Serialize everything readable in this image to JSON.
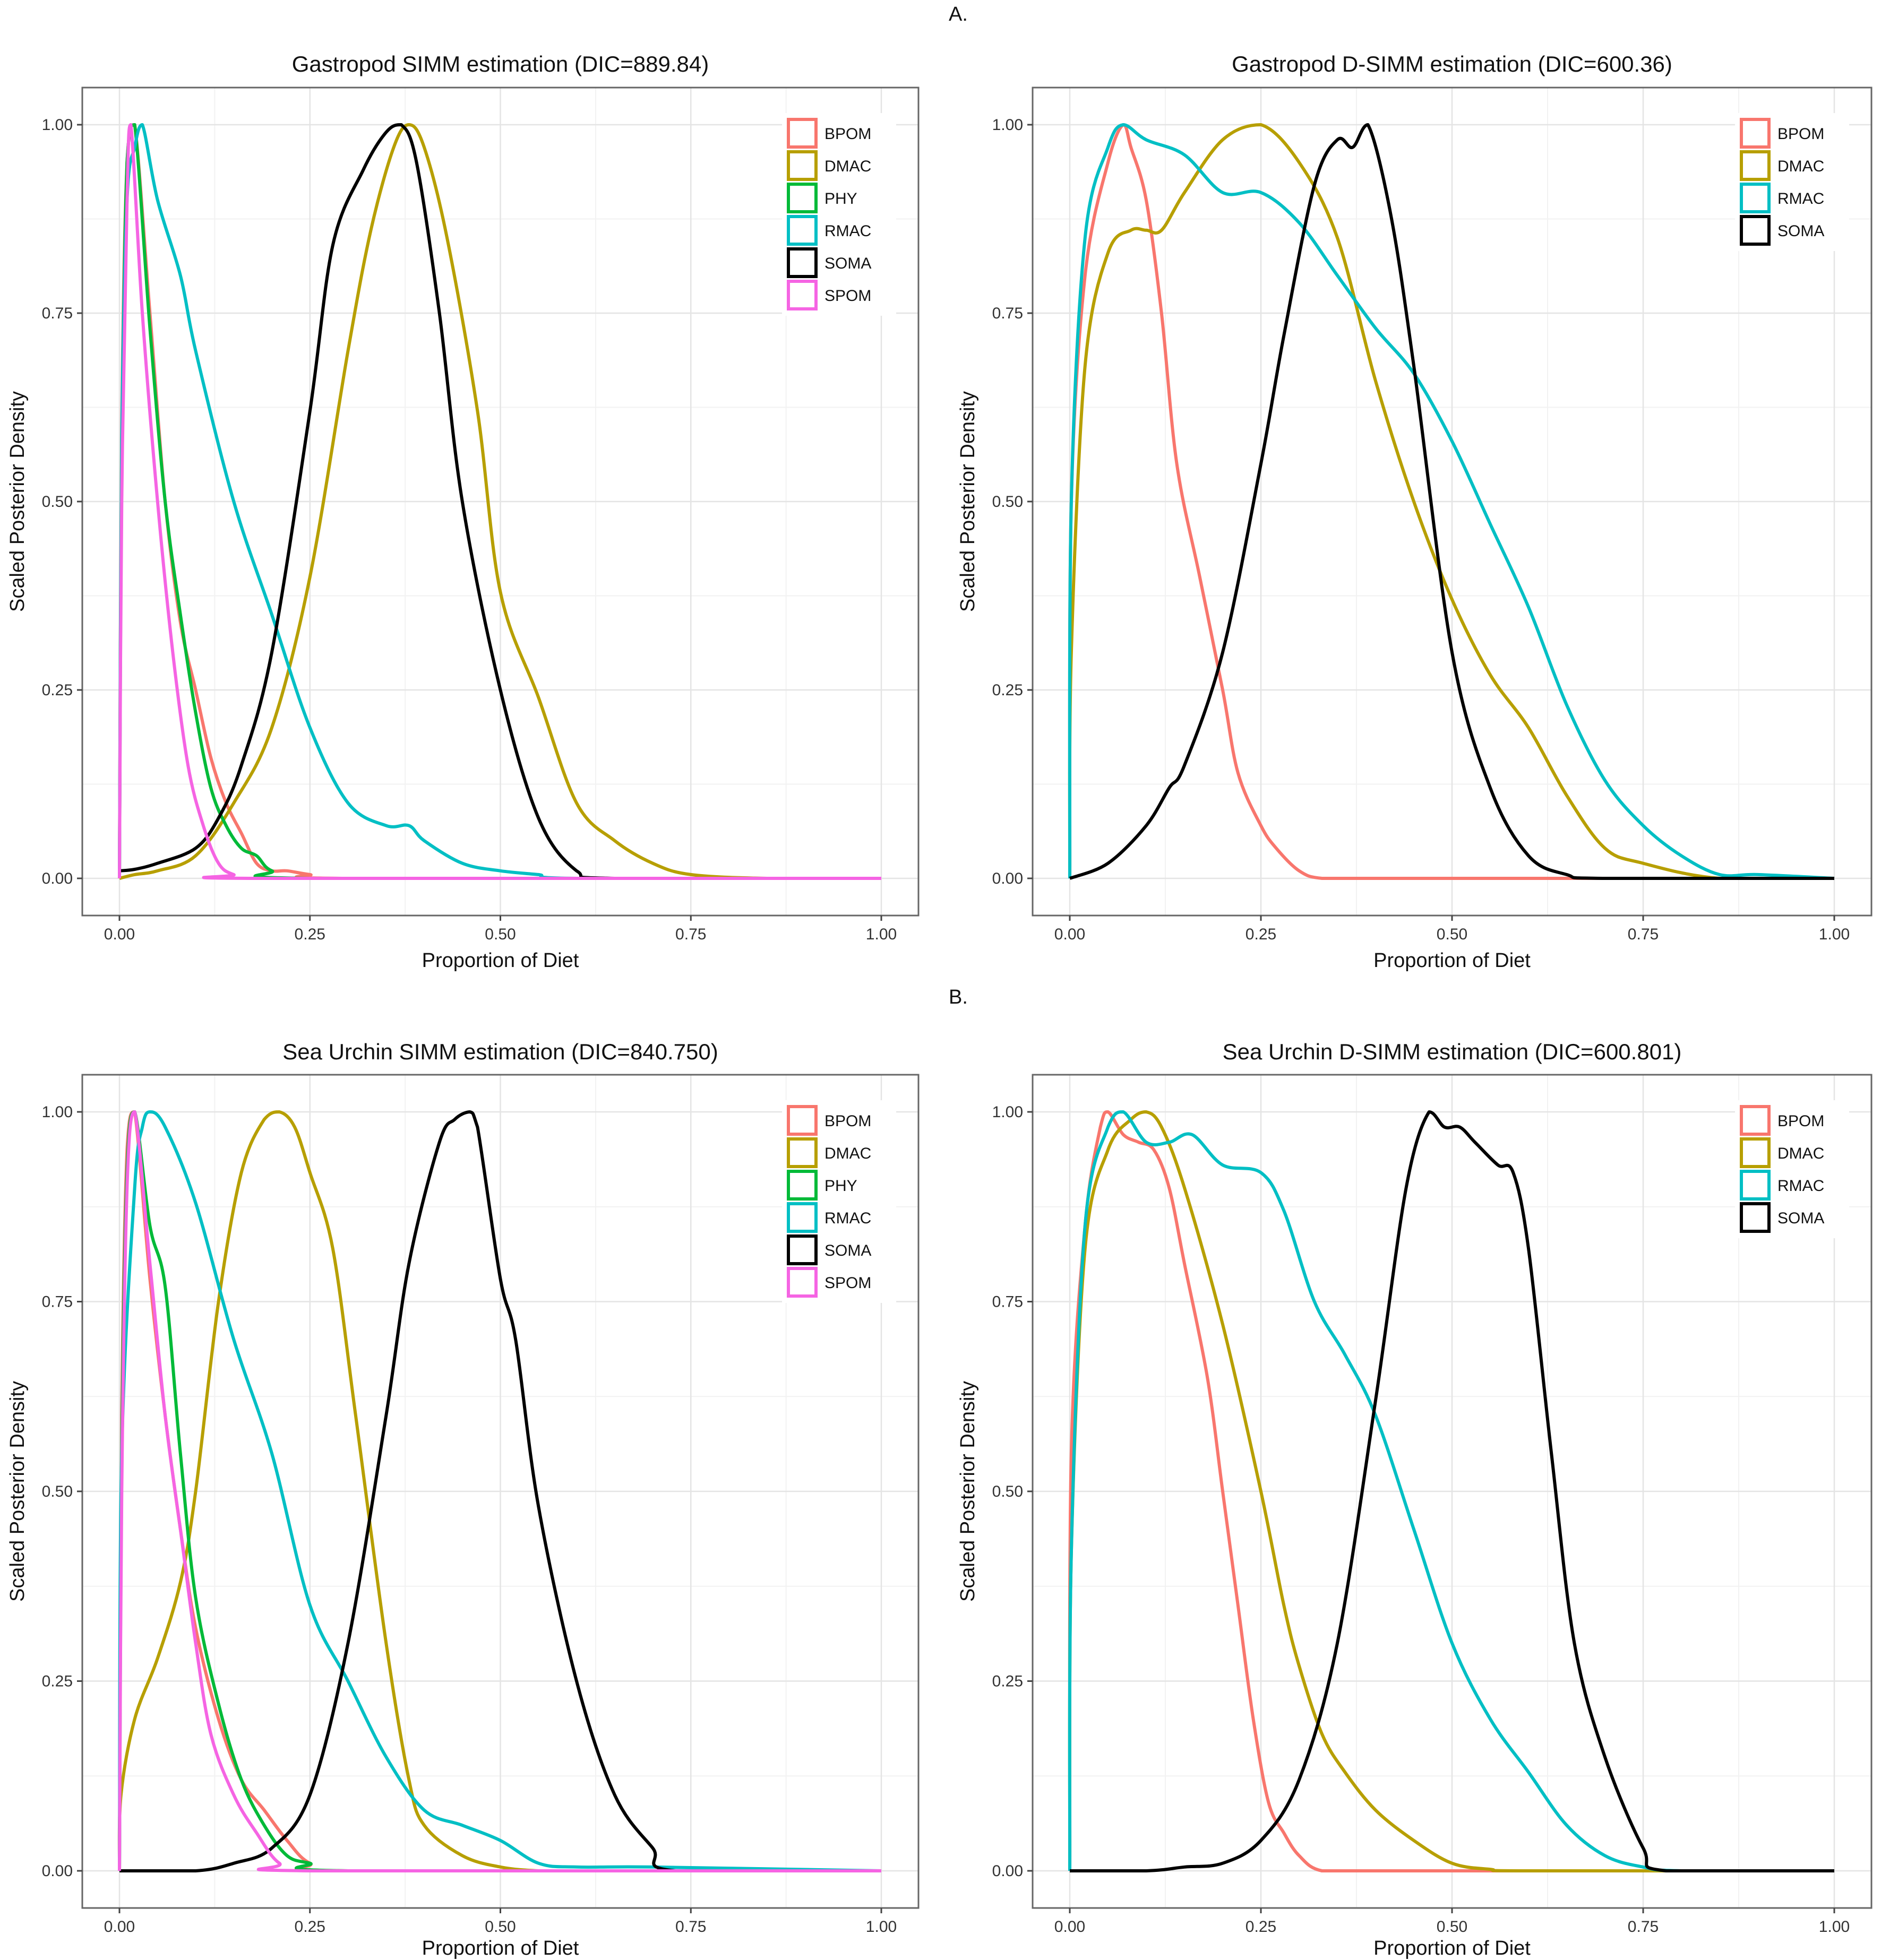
{
  "figure": {
    "section_labels": [
      "A.",
      "B."
    ],
    "colors": {
      "BPOM": "#F8766D",
      "DMAC": "#B79F00",
      "PHY": "#00BA38",
      "RMAC": "#00BFC4",
      "SOMA": "#000000",
      "SPOM": "#F564E3"
    }
  },
  "chart_data": [
    {
      "type": "line",
      "title": "Gastropod SIMM estimation (DIC=889.84)",
      "xlabel": "Proportion of Diet",
      "ylabel": "Scaled Posterior Density",
      "xlim": [
        0,
        1
      ],
      "ylim": [
        0,
        1
      ],
      "xticks": [
        "0.00",
        "0.25",
        "0.50",
        "0.75",
        "1.00"
      ],
      "yticks": [
        "0.00",
        "0.25",
        "0.50",
        "0.75",
        "1.00"
      ],
      "legend": "top-right",
      "series": [
        {
          "name": "BPOM",
          "x": [
            0,
            0.003,
            0.01,
            0.02,
            0.04,
            0.06,
            0.08,
            0.1,
            0.12,
            0.14,
            0.16,
            0.18,
            0.2,
            0.22,
            0.25,
            0.3,
            1.0
          ],
          "values": [
            0,
            0.6,
            0.95,
            1.0,
            0.75,
            0.5,
            0.34,
            0.25,
            0.16,
            0.1,
            0.06,
            0.02,
            0.01,
            0.01,
            0.005,
            0,
            0
          ]
        },
        {
          "name": "DMAC",
          "x": [
            0,
            0.02,
            0.05,
            0.1,
            0.15,
            0.2,
            0.25,
            0.3,
            0.33,
            0.36,
            0.38,
            0.4,
            0.43,
            0.47,
            0.5,
            0.55,
            0.6,
            0.65,
            0.7,
            0.75,
            0.85,
            1.0
          ],
          "values": [
            0,
            0.005,
            0.01,
            0.03,
            0.1,
            0.2,
            0.4,
            0.7,
            0.86,
            0.97,
            1.0,
            0.97,
            0.85,
            0.62,
            0.38,
            0.24,
            0.1,
            0.05,
            0.02,
            0.005,
            0,
            0
          ]
        },
        {
          "name": "PHY",
          "x": [
            0,
            0.003,
            0.01,
            0.02,
            0.04,
            0.06,
            0.08,
            0.1,
            0.12,
            0.14,
            0.16,
            0.18,
            0.2,
            0.25,
            1.0
          ],
          "values": [
            0,
            0.55,
            0.95,
            1.0,
            0.73,
            0.5,
            0.35,
            0.22,
            0.12,
            0.07,
            0.04,
            0.03,
            0.01,
            0,
            0
          ]
        },
        {
          "name": "RMAC",
          "x": [
            0,
            0.003,
            0.01,
            0.02,
            0.03,
            0.05,
            0.08,
            0.1,
            0.15,
            0.2,
            0.25,
            0.3,
            0.35,
            0.38,
            0.4,
            0.45,
            0.5,
            0.55,
            0.6,
            1.0
          ],
          "values": [
            0,
            0.58,
            0.9,
            0.97,
            1.0,
            0.9,
            0.8,
            0.7,
            0.5,
            0.35,
            0.2,
            0.1,
            0.07,
            0.07,
            0.05,
            0.02,
            0.01,
            0.005,
            0,
            0
          ]
        },
        {
          "name": "SOMA",
          "x": [
            0,
            0.02,
            0.05,
            0.1,
            0.13,
            0.16,
            0.2,
            0.25,
            0.28,
            0.32,
            0.35,
            0.37,
            0.39,
            0.42,
            0.45,
            0.5,
            0.55,
            0.6,
            0.65,
            1.0
          ],
          "values": [
            0.01,
            0.012,
            0.02,
            0.04,
            0.08,
            0.15,
            0.3,
            0.62,
            0.84,
            0.94,
            0.99,
            1.0,
            0.95,
            0.75,
            0.5,
            0.25,
            0.08,
            0.01,
            0,
            0
          ]
        },
        {
          "name": "SPOM",
          "x": [
            0,
            0.003,
            0.01,
            0.015,
            0.03,
            0.05,
            0.07,
            0.09,
            0.11,
            0.13,
            0.15,
            0.18,
            1.0
          ],
          "values": [
            0,
            0.5,
            0.9,
            1.0,
            0.75,
            0.5,
            0.3,
            0.15,
            0.07,
            0.02,
            0.005,
            0,
            0
          ]
        }
      ]
    },
    {
      "type": "line",
      "title": "Gastropod  D-SIMM estimation (DIC=600.36)",
      "xlabel": "Proportion of Diet",
      "ylabel": "Scaled Posterior Density",
      "xlim": [
        0,
        1
      ],
      "ylim": [
        0,
        1
      ],
      "xticks": [
        "0.00",
        "0.25",
        "0.50",
        "0.75",
        "1.00"
      ],
      "yticks": [
        "0.00",
        "0.25",
        "0.50",
        "0.75",
        "1.00"
      ],
      "legend": "top-right",
      "series": [
        {
          "name": "BPOM",
          "x": [
            0,
            0.002,
            0.02,
            0.05,
            0.07,
            0.08,
            0.1,
            0.12,
            0.14,
            0.17,
            0.2,
            0.22,
            0.25,
            0.27,
            0.3,
            0.33,
            0.4,
            1.0
          ],
          "values": [
            0,
            0.5,
            0.8,
            0.95,
            1.0,
            0.97,
            0.9,
            0.75,
            0.55,
            0.4,
            0.25,
            0.14,
            0.07,
            0.04,
            0.01,
            0,
            0,
            0
          ]
        },
        {
          "name": "DMAC",
          "x": [
            0,
            0.002,
            0.02,
            0.05,
            0.08,
            0.1,
            0.12,
            0.15,
            0.2,
            0.25,
            0.3,
            0.35,
            0.4,
            0.45,
            0.5,
            0.55,
            0.6,
            0.65,
            0.7,
            0.75,
            0.85,
            1.0
          ],
          "values": [
            0,
            0.3,
            0.68,
            0.83,
            0.86,
            0.86,
            0.86,
            0.91,
            0.98,
            1.0,
            0.95,
            0.85,
            0.66,
            0.5,
            0.37,
            0.27,
            0.2,
            0.11,
            0.04,
            0.02,
            0,
            0
          ]
        },
        {
          "name": "RMAC",
          "x": [
            0,
            0.002,
            0.02,
            0.05,
            0.07,
            0.1,
            0.15,
            0.2,
            0.25,
            0.3,
            0.35,
            0.4,
            0.45,
            0.5,
            0.55,
            0.6,
            0.65,
            0.7,
            0.75,
            0.8,
            0.85,
            0.9,
            1.0
          ],
          "values": [
            0,
            0.5,
            0.85,
            0.97,
            1.0,
            0.98,
            0.96,
            0.91,
            0.91,
            0.87,
            0.8,
            0.73,
            0.67,
            0.58,
            0.47,
            0.36,
            0.23,
            0.13,
            0.07,
            0.03,
            0.005,
            0.005,
            0
          ]
        },
        {
          "name": "SOMA",
          "x": [
            0,
            0.05,
            0.1,
            0.13,
            0.15,
            0.2,
            0.25,
            0.28,
            0.32,
            0.35,
            0.37,
            0.39,
            0.42,
            0.45,
            0.5,
            0.55,
            0.6,
            0.65,
            0.7,
            1.0
          ],
          "values": [
            0,
            0.02,
            0.07,
            0.12,
            0.15,
            0.3,
            0.55,
            0.72,
            0.92,
            0.98,
            0.97,
            1.0,
            0.88,
            0.68,
            0.3,
            0.12,
            0.03,
            0.005,
            0,
            0
          ]
        }
      ]
    },
    {
      "type": "line",
      "title": "Sea Urchin SIMM estimation (DIC=840.750)",
      "xlabel": "Proportion of Diet",
      "ylabel": "Scaled Posterior Density",
      "xlim": [
        0,
        1
      ],
      "ylim": [
        0,
        1
      ],
      "xticks": [
        "0.00",
        "0.25",
        "0.50",
        "0.75",
        "1.00"
      ],
      "yticks": [
        "0.00",
        "0.25",
        "0.50",
        "0.75",
        "1.00"
      ],
      "legend": "top-right",
      "series": [
        {
          "name": "BPOM",
          "x": [
            0,
            0.003,
            0.01,
            0.02,
            0.04,
            0.06,
            0.08,
            0.1,
            0.13,
            0.16,
            0.19,
            0.22,
            0.25,
            0.3,
            1.0
          ],
          "values": [
            0,
            0.6,
            0.95,
            1.0,
            0.78,
            0.6,
            0.45,
            0.32,
            0.2,
            0.12,
            0.08,
            0.04,
            0.01,
            0,
            0
          ]
        },
        {
          "name": "DMAC",
          "x": [
            0,
            0.002,
            0.02,
            0.05,
            0.08,
            0.1,
            0.13,
            0.16,
            0.19,
            0.21,
            0.23,
            0.25,
            0.28,
            0.31,
            0.35,
            0.38,
            0.4,
            0.45,
            0.5,
            0.55,
            0.6,
            1.0
          ],
          "values": [
            0,
            0.1,
            0.2,
            0.28,
            0.38,
            0.5,
            0.75,
            0.92,
            0.99,
            1.0,
            0.98,
            0.92,
            0.82,
            0.6,
            0.3,
            0.12,
            0.06,
            0.02,
            0.005,
            0,
            0,
            0
          ]
        },
        {
          "name": "PHY",
          "x": [
            0,
            0.003,
            0.01,
            0.02,
            0.04,
            0.06,
            0.08,
            0.1,
            0.13,
            0.16,
            0.19,
            0.22,
            0.25,
            0.3,
            1.0
          ],
          "values": [
            0,
            0.55,
            0.92,
            1.0,
            0.85,
            0.77,
            0.55,
            0.36,
            0.22,
            0.12,
            0.06,
            0.02,
            0.01,
            0,
            0
          ]
        },
        {
          "name": "RMAC",
          "x": [
            0,
            0.003,
            0.02,
            0.03,
            0.04,
            0.06,
            0.1,
            0.15,
            0.2,
            0.25,
            0.3,
            0.35,
            0.4,
            0.45,
            0.5,
            0.55,
            0.6,
            0.7,
            1.0
          ],
          "values": [
            0,
            0.55,
            0.9,
            0.98,
            1.0,
            0.98,
            0.88,
            0.7,
            0.55,
            0.35,
            0.25,
            0.15,
            0.08,
            0.06,
            0.04,
            0.01,
            0.005,
            0.005,
            0
          ]
        },
        {
          "name": "SOMA",
          "x": [
            0,
            0.1,
            0.15,
            0.2,
            0.25,
            0.3,
            0.35,
            0.38,
            0.42,
            0.44,
            0.46,
            0.47,
            0.5,
            0.52,
            0.55,
            0.6,
            0.65,
            0.7,
            0.73,
            1.0
          ],
          "values": [
            0,
            0,
            0.01,
            0.03,
            0.1,
            0.3,
            0.6,
            0.8,
            0.96,
            0.99,
            1.0,
            0.98,
            0.78,
            0.7,
            0.48,
            0.25,
            0.1,
            0.03,
            0,
            0
          ]
        },
        {
          "name": "SPOM",
          "x": [
            0,
            0.003,
            0.01,
            0.02,
            0.04,
            0.06,
            0.08,
            0.1,
            0.12,
            0.15,
            0.18,
            0.21,
            0.25,
            1.0
          ],
          "values": [
            0,
            0.5,
            0.9,
            1.0,
            0.8,
            0.6,
            0.45,
            0.3,
            0.18,
            0.1,
            0.05,
            0.01,
            0,
            0
          ]
        }
      ]
    },
    {
      "type": "line",
      "title": "Sea Urchin D-SIMM estimation (DIC=600.801)",
      "xlabel": "Proportion of Diet",
      "ylabel": "Scaled Posterior Density",
      "xlim": [
        0,
        1
      ],
      "ylim": [
        0,
        1
      ],
      "xticks": [
        "0.00",
        "0.25",
        "0.50",
        "0.75",
        "1.00"
      ],
      "yticks": [
        "0.00",
        "0.25",
        "0.50",
        "0.75",
        "1.00"
      ],
      "legend": "top-right",
      "series": [
        {
          "name": "BPOM",
          "x": [
            0,
            0.002,
            0.02,
            0.04,
            0.05,
            0.07,
            0.09,
            0.11,
            0.13,
            0.15,
            0.18,
            0.2,
            0.22,
            0.24,
            0.26,
            0.28,
            0.3,
            0.33,
            0.4,
            1.0
          ],
          "values": [
            0,
            0.55,
            0.85,
            0.98,
            1.0,
            0.97,
            0.96,
            0.95,
            0.9,
            0.8,
            0.65,
            0.5,
            0.35,
            0.2,
            0.09,
            0.05,
            0.02,
            0,
            0,
            0
          ]
        },
        {
          "name": "DMAC",
          "x": [
            0,
            0.002,
            0.02,
            0.05,
            0.08,
            0.1,
            0.12,
            0.15,
            0.2,
            0.25,
            0.28,
            0.3,
            0.33,
            0.36,
            0.4,
            0.45,
            0.5,
            0.55,
            0.6,
            1.0
          ],
          "values": [
            0,
            0.42,
            0.82,
            0.95,
            0.99,
            1.0,
            0.98,
            0.9,
            0.72,
            0.5,
            0.35,
            0.27,
            0.18,
            0.13,
            0.08,
            0.04,
            0.01,
            0.002,
            0,
            0
          ]
        },
        {
          "name": "RMAC",
          "x": [
            0,
            0.002,
            0.02,
            0.05,
            0.07,
            0.1,
            0.13,
            0.16,
            0.2,
            0.25,
            0.28,
            0.32,
            0.36,
            0.4,
            0.45,
            0.5,
            0.55,
            0.6,
            0.65,
            0.7,
            0.75,
            0.8,
            1.0
          ],
          "values": [
            0,
            0.42,
            0.85,
            0.98,
            1.0,
            0.96,
            0.96,
            0.97,
            0.93,
            0.92,
            0.87,
            0.75,
            0.68,
            0.6,
            0.45,
            0.3,
            0.2,
            0.13,
            0.06,
            0.02,
            0.005,
            0,
            0
          ]
        },
        {
          "name": "SOMA",
          "x": [
            0,
            0.1,
            0.15,
            0.2,
            0.25,
            0.3,
            0.35,
            0.4,
            0.44,
            0.47,
            0.49,
            0.51,
            0.53,
            0.56,
            0.58,
            0.6,
            0.63,
            0.66,
            0.7,
            0.75,
            0.78,
            1.0
          ],
          "values": [
            0,
            0,
            0.005,
            0.01,
            0.04,
            0.12,
            0.3,
            0.62,
            0.9,
            1.0,
            0.98,
            0.98,
            0.96,
            0.93,
            0.92,
            0.82,
            0.55,
            0.3,
            0.15,
            0.03,
            0,
            0
          ]
        }
      ]
    }
  ]
}
